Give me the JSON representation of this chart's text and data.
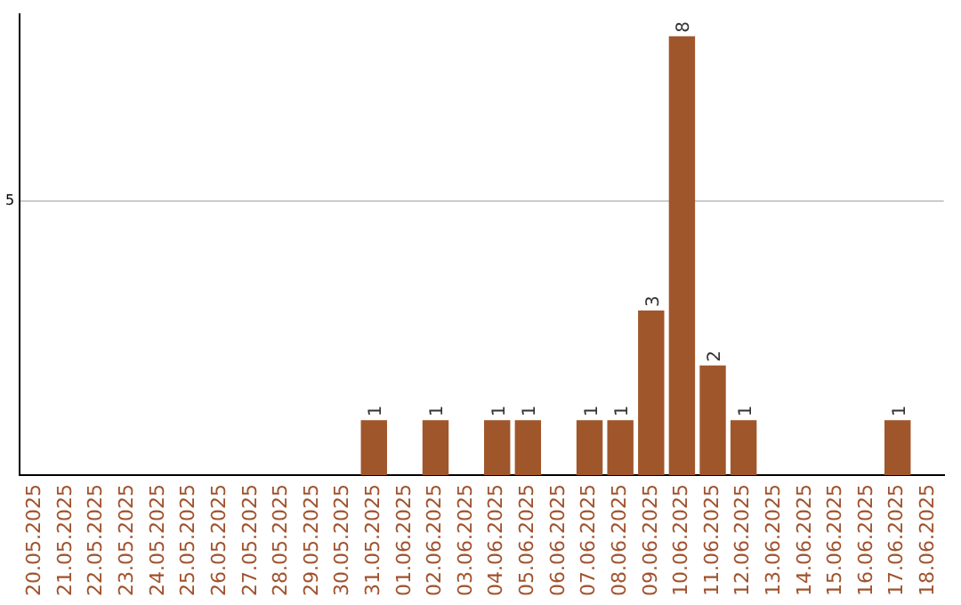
{
  "chart_data": {
    "type": "bar",
    "categories": [
      "20.05.2025",
      "21.05.2025",
      "22.05.2025",
      "23.05.2025",
      "24.05.2025",
      "25.05.2025",
      "26.05.2025",
      "27.05.2025",
      "28.05.2025",
      "29.05.2025",
      "30.05.2025",
      "31.05.2025",
      "01.06.2025",
      "02.06.2025",
      "03.06.2025",
      "04.06.2025",
      "05.06.2025",
      "06.06.2025",
      "07.06.2025",
      "08.06.2025",
      "09.06.2025",
      "10.06.2025",
      "11.06.2025",
      "12.06.2025",
      "13.06.2025",
      "14.06.2025",
      "15.06.2025",
      "16.06.2025",
      "17.06.2025",
      "18.06.2025"
    ],
    "values": [
      0,
      0,
      0,
      0,
      0,
      0,
      0,
      0,
      0,
      0,
      0,
      1,
      0,
      1,
      0,
      1,
      1,
      0,
      1,
      1,
      3,
      8,
      2,
      1,
      0,
      0,
      0,
      0,
      1,
      0
    ],
    "value_labels": [
      null,
      null,
      null,
      null,
      null,
      null,
      null,
      null,
      null,
      null,
      null,
      "1",
      null,
      "1",
      null,
      "1",
      "1",
      null,
      "1",
      "1",
      "3",
      "8",
      "2",
      "1",
      null,
      null,
      null,
      null,
      "1",
      null
    ],
    "color": "#a0562b",
    "ylim": [
      0,
      8.4
    ],
    "yticks": [
      5
    ],
    "grid": "y",
    "legend": false
  }
}
